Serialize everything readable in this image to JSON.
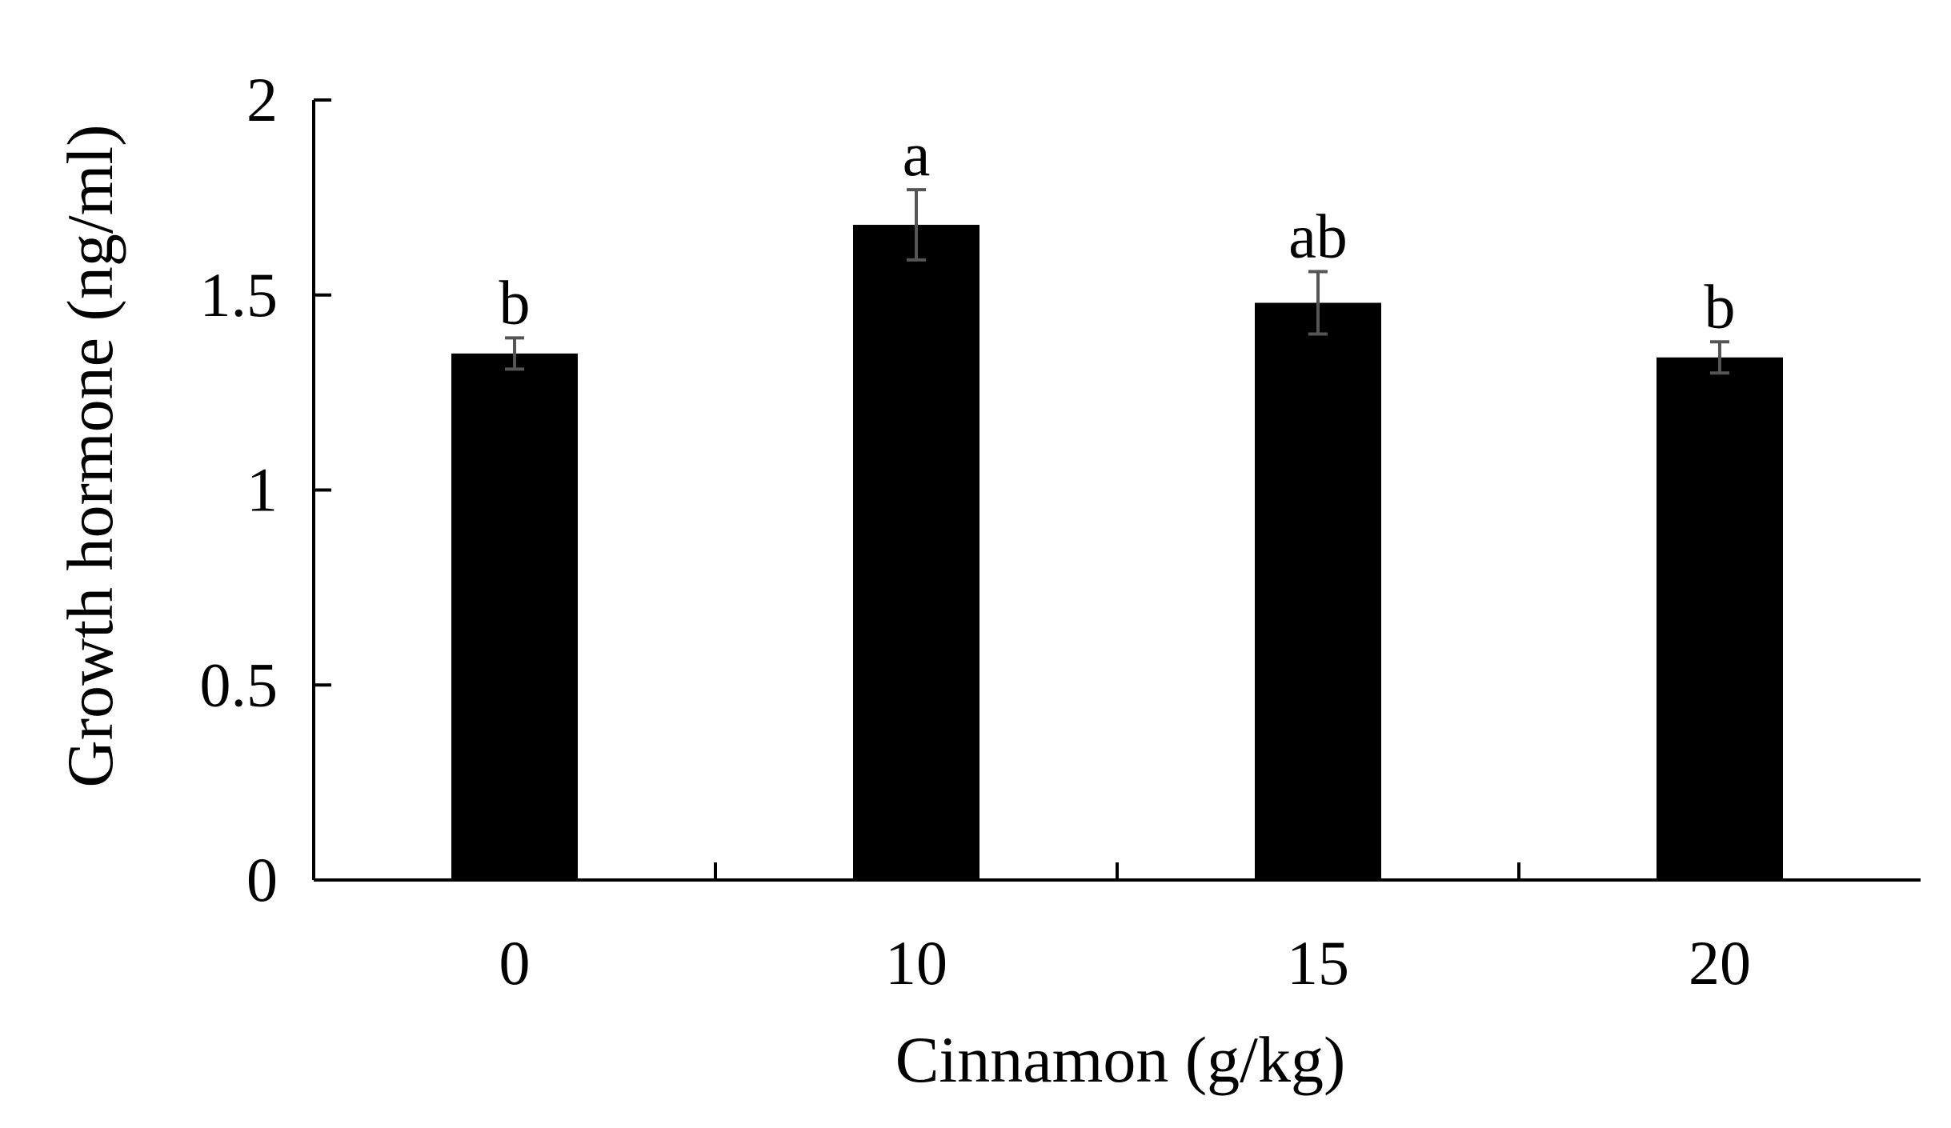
{
  "chart_data": {
    "type": "bar",
    "title": "",
    "xlabel": "Cinnamon (g/kg)",
    "ylabel": "Growth hormone (ng/ml)",
    "categories": [
      "0",
      "10",
      "15",
      "20"
    ],
    "values": [
      1.35,
      1.68,
      1.48,
      1.34
    ],
    "errors": [
      0.04,
      0.09,
      0.08,
      0.04
    ],
    "significance": [
      "b",
      "a",
      "ab",
      "b"
    ],
    "ylim": [
      0,
      2
    ],
    "yticks": [
      0,
      0.5,
      1,
      1.5,
      2
    ],
    "ytick_labels": [
      "0",
      "0.5",
      "1",
      "1.5",
      "2"
    ],
    "grid": false,
    "legend": "none",
    "colors": {
      "bar": "#000000",
      "error_bar": "#555555",
      "axis": "#000000"
    }
  }
}
